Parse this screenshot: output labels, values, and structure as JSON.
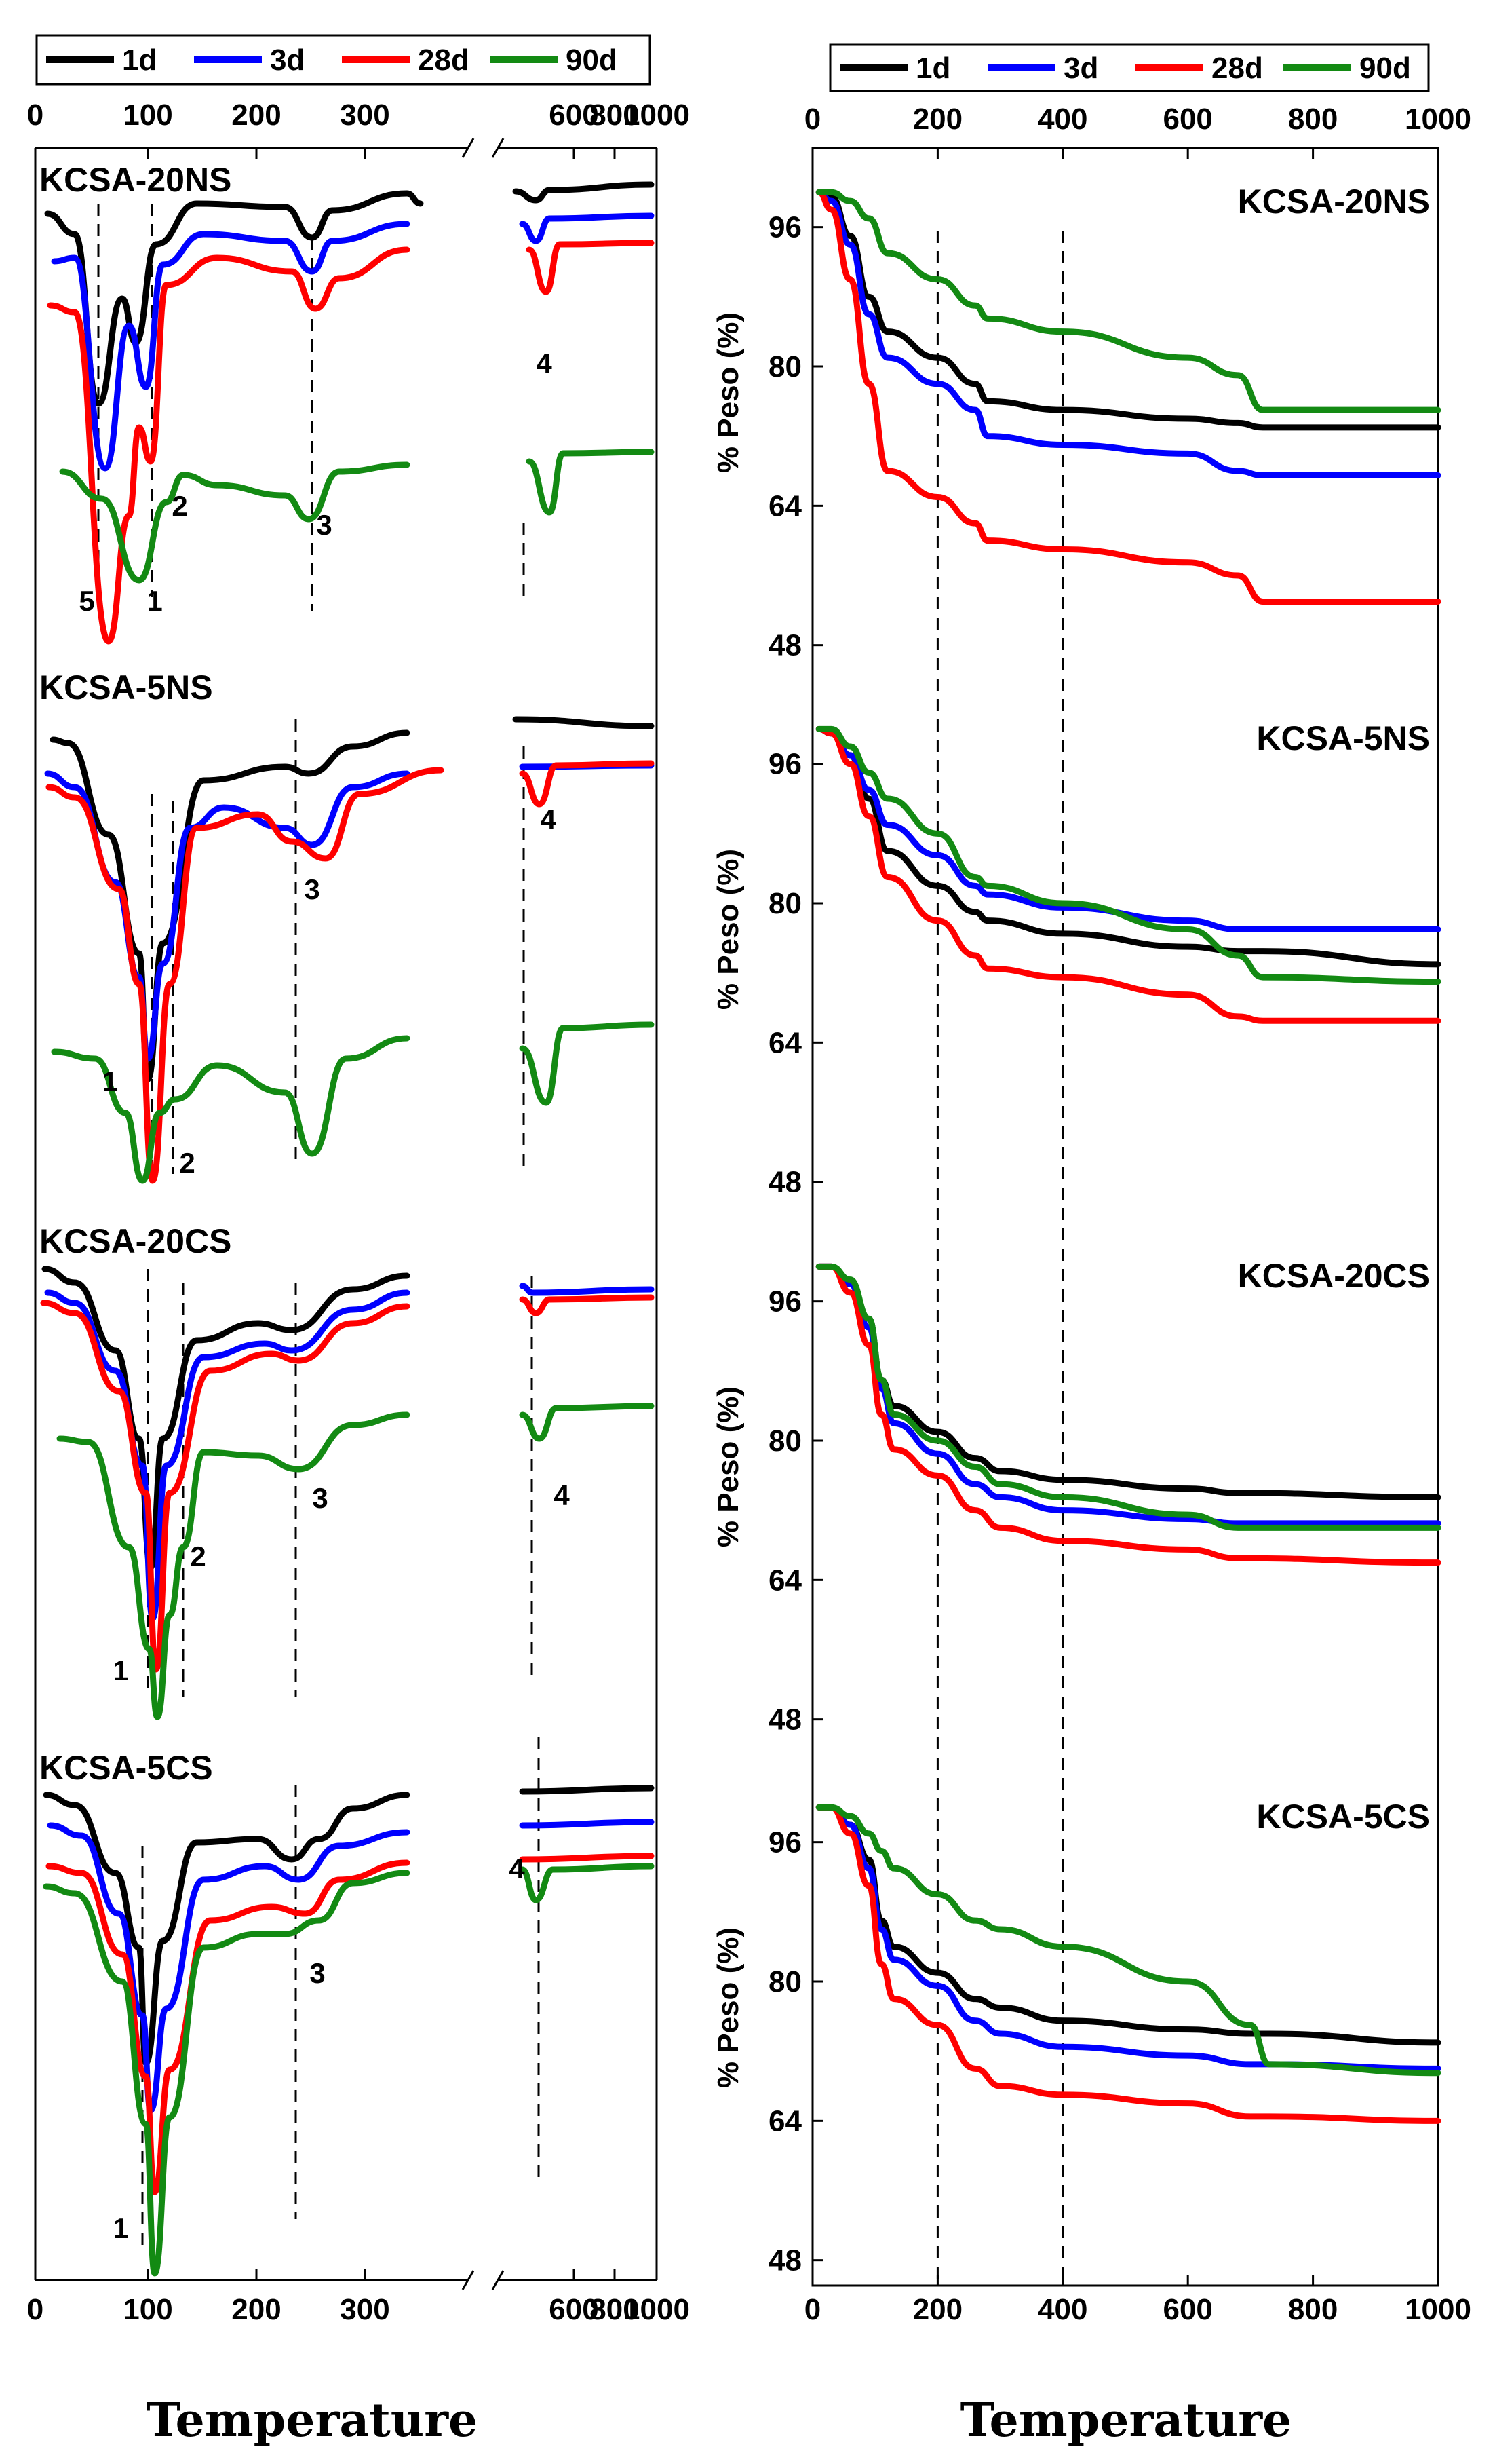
{
  "colors": {
    "1d": "#000000",
    "3d": "#0000ff",
    "28d": "#ff0000",
    "90d": "#138a13"
  },
  "chart_data": [
    {
      "id": "dtg",
      "type": "line",
      "title": "",
      "xlabel": "Temperature",
      "ylabel": "",
      "xlim": [
        0,
        1000
      ],
      "x_ticks": [
        "0",
        "100",
        "200",
        "300",
        "600",
        "800",
        "1000"
      ],
      "x_break_between": [
        350,
        550
      ],
      "legend": [
        "1d",
        "3d",
        "28d",
        "90d"
      ],
      "legend_position": "top",
      "panels": [
        {
          "name": "KCSA-20NS",
          "peak_labels": [
            "5",
            "1",
            "2",
            "3",
            "4"
          ]
        },
        {
          "name": "KCSA-5NS",
          "peak_labels": [
            "1",
            "2",
            "3",
            "4"
          ]
        },
        {
          "name": "KCSA-20CS",
          "peak_labels": [
            "1",
            "2",
            "3",
            "4"
          ]
        },
        {
          "name": "KCSA-5CS",
          "peak_labels": [
            "1",
            "3",
            "4"
          ]
        }
      ]
    },
    {
      "id": "tg",
      "type": "line",
      "xlabel": "Temperature",
      "ylabel": "% Peso (%)",
      "xlim": [
        0,
        1000
      ],
      "x_ticks": [
        0,
        200,
        400,
        600,
        800,
        1000
      ],
      "ylim": [
        44,
        104
      ],
      "y_ticks": [
        48,
        64,
        80,
        96
      ],
      "legend": [
        "1d",
        "3d",
        "28d",
        "90d"
      ],
      "legend_position": "top",
      "panels": [
        {
          "name": "KCSA-20NS",
          "x": [
            10,
            30,
            60,
            90,
            120,
            200,
            260,
            280,
            400,
            600,
            680,
            720,
            1000
          ],
          "series": [
            {
              "name": "1d",
              "values": [
                100,
                99.5,
                95,
                88,
                84,
                81,
                78,
                76,
                75,
                74,
                73.5,
                73,
                73
              ]
            },
            {
              "name": "3d",
              "values": [
                100,
                99,
                94,
                86,
                81,
                78,
                75,
                72,
                71,
                70,
                68,
                67.5,
                67.5
              ]
            },
            {
              "name": "28d",
              "values": [
                100,
                98,
                90,
                78,
                68,
                65,
                62,
                60,
                59,
                57.5,
                56,
                53,
                53
              ]
            },
            {
              "name": "90d",
              "values": [
                100,
                100,
                99,
                97,
                93,
                90,
                87,
                85.5,
                84,
                81,
                79,
                75,
                75
              ]
            }
          ]
        },
        {
          "name": "KCSA-5NS",
          "x": [
            10,
            30,
            60,
            90,
            120,
            200,
            260,
            280,
            400,
            600,
            680,
            720,
            1000
          ],
          "series": [
            {
              "name": "1d",
              "values": [
                100,
                99.5,
                97,
                92,
                86,
                82,
                79,
                78,
                76.5,
                75,
                74.5,
                74.5,
                73
              ]
            },
            {
              "name": "3d",
              "values": [
                100,
                99.5,
                97,
                93,
                89,
                85.5,
                82,
                81,
                79.5,
                78,
                77,
                77,
                77
              ]
            },
            {
              "name": "28d",
              "values": [
                100,
                99.5,
                96,
                90,
                83,
                78,
                74,
                72.5,
                71.5,
                69.5,
                67,
                66.5,
                66.5
              ]
            },
            {
              "name": "90d",
              "values": [
                100,
                100,
                98,
                95,
                92,
                88,
                83,
                82,
                80,
                77,
                74,
                71.5,
                71
              ]
            }
          ]
        },
        {
          "name": "KCSA-20CS",
          "x": [
            10,
            30,
            60,
            90,
            110,
            130,
            200,
            260,
            300,
            400,
            600,
            680,
            1000
          ],
          "series": [
            {
              "name": "1d",
              "values": [
                100,
                100,
                98,
                94,
                87,
                84,
                81,
                78,
                76.5,
                75.5,
                74.5,
                74,
                73.5
              ]
            },
            {
              "name": "3d",
              "values": [
                100,
                100,
                98,
                93,
                86,
                82,
                78.5,
                75,
                73.5,
                72,
                71,
                70.5,
                70.5
              ]
            },
            {
              "name": "28d",
              "values": [
                100,
                100,
                97,
                91,
                83,
                79,
                76,
                72,
                70,
                68.5,
                67.5,
                66.5,
                66
              ]
            },
            {
              "name": "90d",
              "values": [
                100,
                100,
                98.5,
                94,
                87,
                83,
                80,
                77,
                75,
                73.5,
                71.5,
                70,
                70
              ]
            }
          ]
        },
        {
          "name": "KCSA-5CS",
          "x": [
            10,
            30,
            60,
            90,
            110,
            130,
            200,
            260,
            300,
            400,
            600,
            700,
            730,
            1000
          ],
          "series": [
            {
              "name": "1d",
              "values": [
                100,
                100,
                98,
                94,
                87,
                84,
                81,
                78,
                77,
                75.5,
                74.5,
                74,
                74,
                73
              ]
            },
            {
              "name": "3d",
              "values": [
                100,
                100,
                98,
                93,
                86,
                82.5,
                79.5,
                75.5,
                74,
                72.5,
                71.5,
                70.5,
                70.5,
                70
              ]
            },
            {
              "name": "28d",
              "values": [
                100,
                100,
                97,
                91,
                82,
                78,
                75,
                70,
                68,
                67,
                66,
                64.5,
                64.5,
                64
              ]
            },
            {
              "name": "90d",
              "values": [
                100,
                100,
                99,
                97,
                95,
                93,
                90,
                87,
                86,
                84,
                80,
                75,
                70.5,
                69.5
              ]
            }
          ]
        }
      ]
    }
  ]
}
